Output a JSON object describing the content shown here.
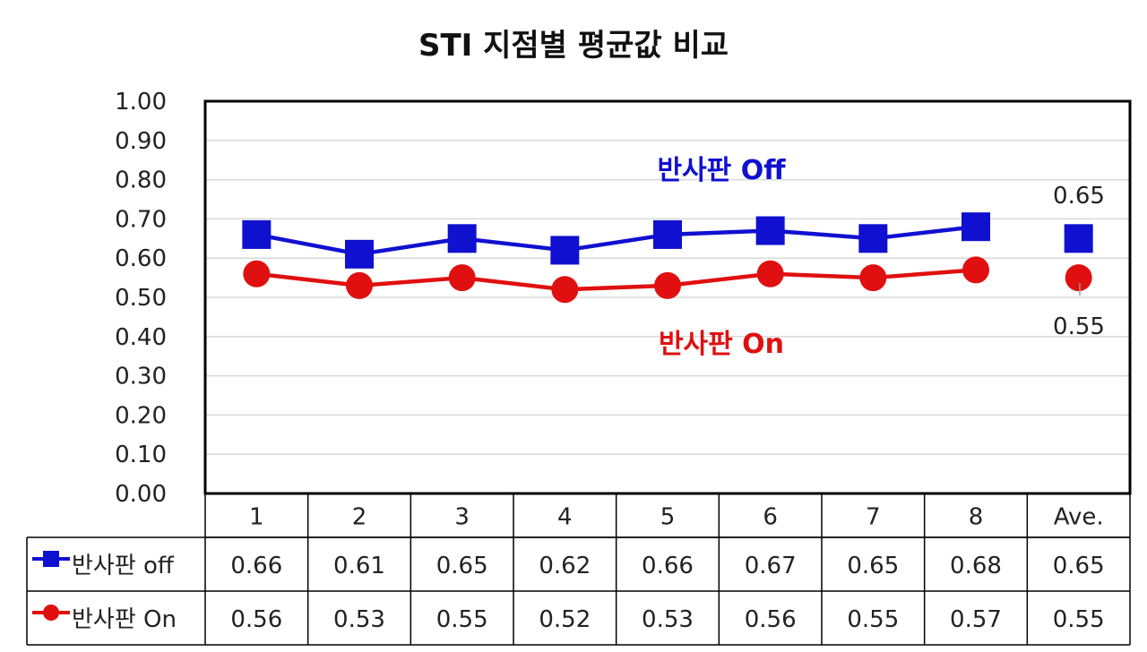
{
  "chart_data": {
    "type": "line",
    "title": "STI  지점별 평균값 비교",
    "categories": [
      "1",
      "2",
      "3",
      "4",
      "5",
      "6",
      "7",
      "8",
      "Ave."
    ],
    "ylim": [
      0,
      1
    ],
    "yticks": [
      "0.00",
      "0.10",
      "0.20",
      "0.30",
      "0.40",
      "0.50",
      "0.60",
      "0.70",
      "0.80",
      "0.90",
      "1.00"
    ],
    "grid": true,
    "legend": "data table rows",
    "series": [
      {
        "name": "반사판 off",
        "color": "#1010d0",
        "marker": "square",
        "values": [
          0.66,
          0.61,
          0.65,
          0.62,
          0.66,
          0.67,
          0.65,
          0.68,
          0.65
        ],
        "table_values": [
          "0.66",
          "0.61",
          "0.65",
          "0.62",
          "0.66",
          "0.67",
          "0.65",
          "0.68",
          "0.65"
        ]
      },
      {
        "name": "반사판 On",
        "color": "#e01010",
        "marker": "circle",
        "values": [
          0.56,
          0.53,
          0.55,
          0.52,
          0.53,
          0.56,
          0.55,
          0.57,
          0.55
        ],
        "table_values": [
          "0.56",
          "0.53",
          "0.55",
          "0.52",
          "0.53",
          "0.56",
          "0.55",
          "0.57",
          "0.55"
        ]
      }
    ],
    "annotations": {
      "off_label": "반사판 Off",
      "on_label": "반사판 On",
      "ave_off_label": "0.65",
      "ave_on_label": "0.55"
    }
  }
}
